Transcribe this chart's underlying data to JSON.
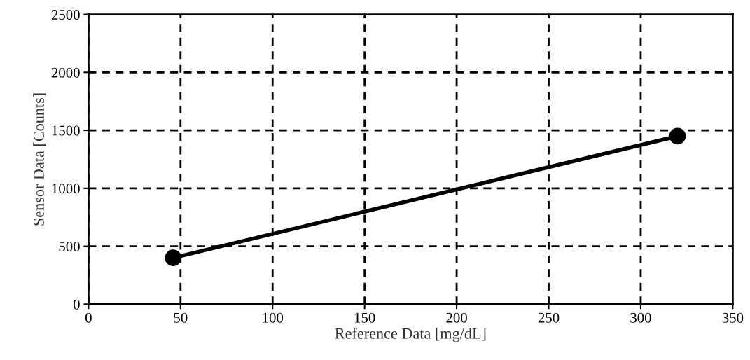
{
  "chart_data": {
    "type": "line",
    "xlabel": "Reference Data [mg/dL]",
    "ylabel": "Sensor Data [Counts]",
    "x": [
      46,
      320
    ],
    "series": [
      {
        "color": "#000000",
        "values": [
          400,
          1450
        ]
      }
    ],
    "xlim": [
      0,
      350
    ],
    "xticks": [
      0,
      50,
      100,
      150,
      200,
      250,
      300,
      350
    ],
    "ylim": [
      0,
      2500
    ],
    "yticks": [
      0,
      500,
      1000,
      1500,
      2000,
      2500
    ],
    "grid": true,
    "marker": "circle",
    "line_style": "solid",
    "legend": false
  }
}
